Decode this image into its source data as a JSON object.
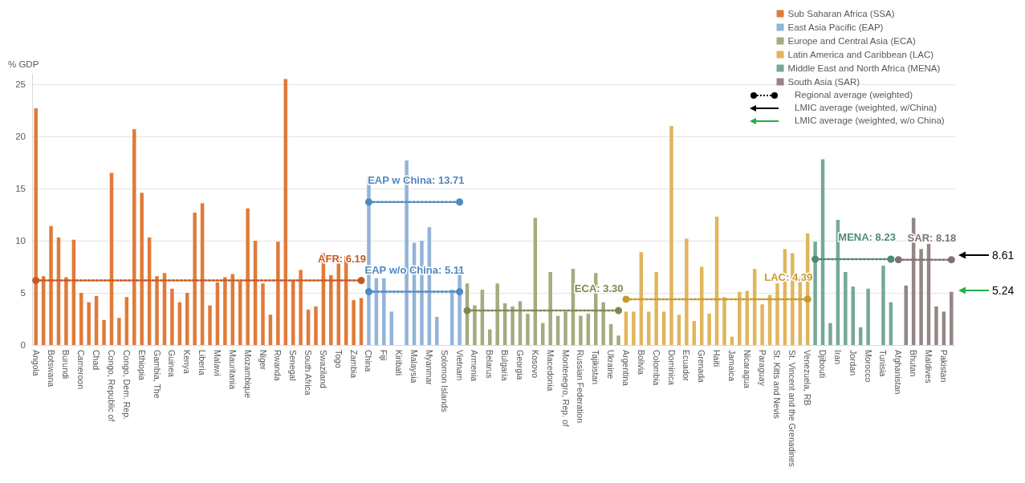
{
  "chart_data": {
    "type": "bar",
    "ylabel": "% GDP",
    "legend": "top right",
    "grid": "y",
    "marker": "circle",
    "line_style": "dotted",
    "ylim": [
      0,
      26
    ],
    "yticks": [
      0,
      5,
      10,
      15,
      20,
      25
    ],
    "categories": [
      "Angola",
      null,
      "Botswana",
      null,
      "Burundi",
      null,
      "Cameroon",
      null,
      "Chad",
      null,
      "Congo, Republic of",
      null,
      "Congo, Dem. Rep.",
      null,
      "Ethiopia",
      null,
      "Gambia, The",
      null,
      "Guinea",
      null,
      "Kenya",
      null,
      "Liberia",
      null,
      "Malawi",
      null,
      "Mauritania",
      null,
      "Mozambique",
      null,
      "Niger",
      null,
      "Rwanda",
      null,
      "Senegal",
      null,
      "South Africa",
      null,
      "Swaziland",
      null,
      "Togo",
      null,
      "Zambia",
      null,
      "China",
      null,
      "Fiji",
      null,
      "Kiribati",
      null,
      "Malaysia",
      null,
      "Myanmar",
      null,
      "Solomon Islands",
      null,
      "Vietnam",
      null,
      "Armenia",
      null,
      "Belarus",
      null,
      "Bulgaria",
      null,
      "Georgia",
      null,
      "Kosovo",
      null,
      "Macedonia",
      null,
      "Montenegro, Rep. of",
      null,
      "Russian Federation",
      null,
      "Tajikistan",
      null,
      "Ukraine",
      null,
      "Argentina",
      null,
      "Bolivia",
      null,
      "Colombia",
      null,
      "Dominica",
      null,
      "Ecuador",
      null,
      "Grenada",
      null,
      "Haiti",
      null,
      "Jamaica",
      null,
      "Nicaragua",
      null,
      "Paraguay",
      null,
      "St. Kitts and Nevis",
      null,
      "St. Vincent and the Grenadines",
      null,
      "Venezuela, RB",
      null,
      "Djibouti",
      null,
      "Iran",
      null,
      "Jordan",
      null,
      "Morocco",
      null,
      "Tunisia",
      null,
      "Afghanistan",
      null,
      "Bhutan",
      null,
      "Maldives",
      null,
      "Pakistan",
      null
    ],
    "series": [
      {
        "name": "Sub Saharan Africa (SSA)",
        "color": "#e07b39",
        "values": [
          22.7,
          6.6,
          11.4,
          10.3,
          6.5,
          10.1,
          5.0,
          4.1,
          4.7,
          2.4,
          16.5,
          2.6,
          4.6,
          20.7,
          14.6,
          10.3,
          6.6,
          6.9,
          5.4,
          4.1,
          5.0,
          12.7,
          13.6,
          3.8,
          6.0,
          6.5,
          6.8,
          6.1,
          13.1,
          10.0,
          5.9,
          2.9,
          9.9,
          25.5,
          6.2,
          7.2,
          3.4,
          3.7,
          8.8,
          6.7,
          8.6,
          8.5,
          4.3,
          4.5,
          null,
          null,
          null,
          null,
          null,
          null,
          null,
          null,
          null,
          null,
          null,
          null,
          null,
          null,
          null,
          null,
          null,
          null,
          null,
          null,
          null,
          null,
          null,
          null,
          null,
          null,
          null,
          null,
          null,
          null,
          null,
          null,
          null,
          null,
          null,
          null,
          null,
          null,
          null,
          null,
          null,
          null,
          null,
          null,
          null,
          null,
          null,
          null,
          null,
          null,
          null,
          null,
          null,
          null,
          null,
          null,
          null,
          null,
          null,
          null,
          null,
          null,
          null,
          null,
          null,
          null,
          null,
          null,
          null,
          null,
          null,
          null,
          null,
          null,
          null,
          null,
          null,
          null
        ]
      },
      {
        "name": "East Asia Pacific (EAP)",
        "color": "#92b4d8",
        "values": [
          null,
          null,
          null,
          null,
          null,
          null,
          null,
          null,
          null,
          null,
          null,
          null,
          null,
          null,
          null,
          null,
          null,
          null,
          null,
          null,
          null,
          null,
          null,
          null,
          null,
          null,
          null,
          null,
          null,
          null,
          null,
          null,
          null,
          null,
          null,
          null,
          null,
          null,
          null,
          null,
          null,
          null,
          null,
          null,
          16.1,
          6.4,
          6.4,
          3.2,
          null,
          17.7,
          9.8,
          10.0,
          11.3,
          2.7,
          null,
          5.3,
          7.5,
          null,
          null,
          null,
          null,
          null,
          null,
          null,
          null,
          null,
          null,
          null,
          null,
          null,
          null,
          null,
          null,
          null,
          null,
          null,
          null,
          null,
          null,
          null,
          null,
          null,
          null,
          null,
          null,
          null,
          null,
          null,
          null,
          null,
          null,
          null,
          null,
          null,
          null,
          null,
          null,
          null,
          null,
          null,
          null,
          null,
          null,
          null,
          null,
          null,
          null,
          null,
          null,
          null,
          null,
          null,
          null,
          null,
          null,
          null,
          null,
          null,
          null,
          null,
          null,
          null
        ]
      },
      {
        "name": "Europe and Central Asia (ECA)",
        "color": "#a5ab7e",
        "values": [
          null,
          null,
          null,
          null,
          null,
          null,
          null,
          null,
          null,
          null,
          null,
          null,
          null,
          null,
          null,
          null,
          null,
          null,
          null,
          null,
          null,
          null,
          null,
          null,
          null,
          null,
          null,
          null,
          null,
          null,
          null,
          null,
          null,
          null,
          null,
          null,
          null,
          null,
          null,
          null,
          null,
          null,
          null,
          null,
          null,
          null,
          null,
          null,
          null,
          null,
          null,
          null,
          null,
          null,
          null,
          null,
          null,
          5.9,
          3.8,
          5.3,
          1.5,
          5.9,
          4.0,
          3.7,
          4.2,
          3.0,
          12.2,
          2.1,
          7.0,
          2.8,
          3.2,
          7.3,
          2.8,
          3.0,
          6.9,
          4.1,
          2.0,
          0.9,
          null,
          null,
          null,
          null,
          null,
          null,
          null,
          null,
          null,
          null,
          null,
          null,
          null,
          null,
          null,
          null,
          null,
          null,
          null,
          null,
          null,
          null,
          null,
          null,
          null,
          null,
          null,
          null,
          null,
          null,
          null,
          null,
          null,
          null,
          null,
          null,
          null,
          null,
          null,
          null,
          null,
          null,
          null,
          null
        ]
      },
      {
        "name": "Latin America and Caribbean (LAC)",
        "color": "#e1b55c",
        "values": [
          null,
          null,
          null,
          null,
          null,
          null,
          null,
          null,
          null,
          null,
          null,
          null,
          null,
          null,
          null,
          null,
          null,
          null,
          null,
          null,
          null,
          null,
          null,
          null,
          null,
          null,
          null,
          null,
          null,
          null,
          null,
          null,
          null,
          null,
          null,
          null,
          null,
          null,
          null,
          null,
          null,
          null,
          null,
          null,
          null,
          null,
          null,
          null,
          null,
          null,
          null,
          null,
          null,
          null,
          null,
          null,
          null,
          null,
          null,
          null,
          null,
          null,
          null,
          null,
          null,
          null,
          null,
          null,
          null,
          null,
          null,
          null,
          null,
          null,
          null,
          null,
          null,
          null,
          3.2,
          3.2,
          8.9,
          3.2,
          7.0,
          3.2,
          21.0,
          2.9,
          10.2,
          2.3,
          7.5,
          3.0,
          12.3,
          4.6,
          0.8,
          5.1,
          5.2,
          7.3,
          3.9,
          4.8,
          5.9,
          9.2,
          8.8,
          6.5,
          10.7,
          null,
          null,
          null,
          null,
          null,
          null,
          null,
          null,
          null,
          null,
          null,
          null,
          null,
          null,
          null,
          null,
          null,
          null,
          null
        ]
      },
      {
        "name": "Middle East and North Africa (MENA)",
        "color": "#76a898",
        "values": [
          null,
          null,
          null,
          null,
          null,
          null,
          null,
          null,
          null,
          null,
          null,
          null,
          null,
          null,
          null,
          null,
          null,
          null,
          null,
          null,
          null,
          null,
          null,
          null,
          null,
          null,
          null,
          null,
          null,
          null,
          null,
          null,
          null,
          null,
          null,
          null,
          null,
          null,
          null,
          null,
          null,
          null,
          null,
          null,
          null,
          null,
          null,
          null,
          null,
          null,
          null,
          null,
          null,
          null,
          null,
          null,
          null,
          null,
          null,
          null,
          null,
          null,
          null,
          null,
          null,
          null,
          null,
          null,
          null,
          null,
          null,
          null,
          null,
          null,
          null,
          null,
          null,
          null,
          null,
          null,
          null,
          null,
          null,
          null,
          null,
          null,
          null,
          null,
          null,
          null,
          null,
          null,
          null,
          null,
          null,
          null,
          null,
          null,
          null,
          null,
          null,
          null,
          null,
          9.9,
          17.8,
          2.1,
          12.0,
          7.0,
          5.6,
          1.7,
          5.4,
          null,
          7.6,
          4.1,
          null,
          null,
          null,
          null,
          null,
          null,
          null,
          null
        ]
      },
      {
        "name": "South Asia (SAR)",
        "color": "#958686",
        "values": [
          null,
          null,
          null,
          null,
          null,
          null,
          null,
          null,
          null,
          null,
          null,
          null,
          null,
          null,
          null,
          null,
          null,
          null,
          null,
          null,
          null,
          null,
          null,
          null,
          null,
          null,
          null,
          null,
          null,
          null,
          null,
          null,
          null,
          null,
          null,
          null,
          null,
          null,
          null,
          null,
          null,
          null,
          null,
          null,
          null,
          null,
          null,
          null,
          null,
          null,
          null,
          null,
          null,
          null,
          null,
          null,
          null,
          null,
          null,
          null,
          null,
          null,
          null,
          null,
          null,
          null,
          null,
          null,
          null,
          null,
          null,
          null,
          null,
          null,
          null,
          null,
          null,
          null,
          null,
          null,
          null,
          null,
          null,
          null,
          null,
          null,
          null,
          null,
          null,
          null,
          null,
          null,
          null,
          null,
          null,
          null,
          null,
          null,
          null,
          null,
          null,
          null,
          null,
          null,
          null,
          null,
          null,
          null,
          null,
          null,
          null,
          null,
          null,
          null,
          null,
          5.7,
          12.2,
          9.2,
          9.7,
          3.7,
          3.2,
          5.1
        ]
      },
      {
        "type": "line",
        "name": "AFR: 6.19",
        "color": "#c65a22",
        "values": [
          6.19,
          null,
          null,
          null,
          null,
          null,
          null,
          null,
          null,
          null,
          null,
          null,
          null,
          null,
          null,
          null,
          null,
          null,
          null,
          null,
          null,
          null,
          null,
          null,
          null,
          null,
          null,
          null,
          null,
          null,
          null,
          null,
          null,
          null,
          null,
          null,
          null,
          null,
          null,
          null,
          null,
          null,
          null,
          6.19,
          null,
          null,
          null,
          null,
          null,
          null,
          null,
          null,
          null,
          null,
          null,
          null,
          null,
          null,
          null,
          null,
          null,
          null,
          null,
          null,
          null,
          null,
          null,
          null,
          null,
          null,
          null,
          null,
          null,
          null,
          null,
          null,
          null,
          null,
          null,
          null,
          null,
          null,
          null,
          null,
          null,
          null,
          null,
          null,
          null,
          null,
          null,
          null,
          null,
          null,
          null,
          null,
          null,
          null,
          null,
          null,
          null,
          null,
          null,
          null,
          null,
          null,
          null,
          null,
          null,
          null,
          null,
          null,
          null,
          null,
          null,
          null,
          null,
          null,
          null,
          null,
          null,
          null
        ]
      },
      {
        "type": "line",
        "name": "EAP w China: 13.71",
        "color": "#4f88c2",
        "values": [
          null,
          null,
          null,
          null,
          null,
          null,
          null,
          null,
          null,
          null,
          null,
          null,
          null,
          null,
          null,
          null,
          null,
          null,
          null,
          null,
          null,
          null,
          null,
          null,
          null,
          null,
          null,
          null,
          null,
          null,
          null,
          null,
          null,
          null,
          null,
          null,
          null,
          null,
          null,
          null,
          null,
          null,
          null,
          null,
          13.71,
          null,
          null,
          null,
          null,
          null,
          null,
          null,
          null,
          null,
          null,
          null,
          13.71,
          null,
          null,
          null,
          null,
          null,
          null,
          null,
          null,
          null,
          null,
          null,
          null,
          null,
          null,
          null,
          null,
          null,
          null,
          null,
          null,
          null,
          null,
          null,
          null,
          null,
          null,
          null,
          null,
          null,
          null,
          null,
          null,
          null,
          null,
          null,
          null,
          null,
          null,
          null,
          null,
          null,
          null,
          null,
          null,
          null,
          null,
          null,
          null,
          null,
          null,
          null,
          null,
          null,
          null,
          null,
          null,
          null,
          null,
          null,
          null,
          null,
          null,
          null,
          null,
          null
        ]
      },
      {
        "type": "line",
        "name": "EAP w/o China: 5.11",
        "color": "#4f88c2",
        "values": [
          null,
          null,
          null,
          null,
          null,
          null,
          null,
          null,
          null,
          null,
          null,
          null,
          null,
          null,
          null,
          null,
          null,
          null,
          null,
          null,
          null,
          null,
          null,
          null,
          null,
          null,
          null,
          null,
          null,
          null,
          null,
          null,
          null,
          null,
          null,
          null,
          null,
          null,
          null,
          null,
          null,
          null,
          null,
          null,
          5.11,
          null,
          null,
          null,
          null,
          null,
          null,
          null,
          null,
          null,
          null,
          null,
          5.11,
          null,
          null,
          null,
          null,
          null,
          null,
          null,
          null,
          null,
          null,
          null,
          null,
          null,
          null,
          null,
          null,
          null,
          null,
          null,
          null,
          null,
          null,
          null,
          null,
          null,
          null,
          null,
          null,
          null,
          null,
          null,
          null,
          null,
          null,
          null,
          null,
          null,
          null,
          null,
          null,
          null,
          null,
          null,
          null,
          null,
          null,
          null,
          null,
          null,
          null,
          null,
          null,
          null,
          null,
          null,
          null,
          null,
          null,
          null,
          null,
          null,
          null,
          null,
          null,
          null
        ]
      },
      {
        "type": "line",
        "name": "ECA: 3.30",
        "color": "#7e8753",
        "values": [
          null,
          null,
          null,
          null,
          null,
          null,
          null,
          null,
          null,
          null,
          null,
          null,
          null,
          null,
          null,
          null,
          null,
          null,
          null,
          null,
          null,
          null,
          null,
          null,
          null,
          null,
          null,
          null,
          null,
          null,
          null,
          null,
          null,
          null,
          null,
          null,
          null,
          null,
          null,
          null,
          null,
          null,
          null,
          null,
          null,
          null,
          null,
          null,
          null,
          null,
          null,
          null,
          null,
          null,
          null,
          null,
          null,
          3.3,
          null,
          null,
          null,
          null,
          null,
          null,
          null,
          null,
          null,
          null,
          null,
          null,
          null,
          null,
          null,
          null,
          null,
          null,
          null,
          3.3,
          null,
          null,
          null,
          null,
          null,
          null,
          null,
          null,
          null,
          null,
          null,
          null,
          null,
          null,
          null,
          null,
          null,
          null,
          null,
          null,
          null,
          null,
          null,
          null,
          null,
          null,
          null,
          null,
          null,
          null,
          null,
          null,
          null,
          null,
          null,
          null,
          null,
          null,
          null,
          null,
          null,
          null,
          null,
          null
        ]
      },
      {
        "type": "line",
        "name": "LAC: 4.39",
        "color": "#c89b2e",
        "values": [
          null,
          null,
          null,
          null,
          null,
          null,
          null,
          null,
          null,
          null,
          null,
          null,
          null,
          null,
          null,
          null,
          null,
          null,
          null,
          null,
          null,
          null,
          null,
          null,
          null,
          null,
          null,
          null,
          null,
          null,
          null,
          null,
          null,
          null,
          null,
          null,
          null,
          null,
          null,
          null,
          null,
          null,
          null,
          null,
          null,
          null,
          null,
          null,
          null,
          null,
          null,
          null,
          null,
          null,
          null,
          null,
          null,
          null,
          null,
          null,
          null,
          null,
          null,
          null,
          null,
          null,
          null,
          null,
          null,
          null,
          null,
          null,
          null,
          null,
          null,
          null,
          null,
          null,
          4.39,
          null,
          null,
          null,
          null,
          null,
          null,
          null,
          null,
          null,
          null,
          null,
          null,
          null,
          null,
          null,
          null,
          null,
          null,
          null,
          null,
          null,
          null,
          null,
          4.39,
          null,
          null,
          null,
          null,
          null,
          null,
          null,
          null,
          null,
          null,
          null,
          null,
          null,
          null,
          null,
          null,
          null,
          null,
          null
        ]
      },
      {
        "type": "line",
        "name": "MENA: 8.23",
        "color": "#4f8a79",
        "values": [
          null,
          null,
          null,
          null,
          null,
          null,
          null,
          null,
          null,
          null,
          null,
          null,
          null,
          null,
          null,
          null,
          null,
          null,
          null,
          null,
          null,
          null,
          null,
          null,
          null,
          null,
          null,
          null,
          null,
          null,
          null,
          null,
          null,
          null,
          null,
          null,
          null,
          null,
          null,
          null,
          null,
          null,
          null,
          null,
          null,
          null,
          null,
          null,
          null,
          null,
          null,
          null,
          null,
          null,
          null,
          null,
          null,
          null,
          null,
          null,
          null,
          null,
          null,
          null,
          null,
          null,
          null,
          null,
          null,
          null,
          null,
          null,
          null,
          null,
          null,
          null,
          null,
          null,
          null,
          null,
          null,
          null,
          null,
          null,
          null,
          null,
          null,
          null,
          null,
          null,
          null,
          null,
          null,
          null,
          null,
          null,
          null,
          null,
          null,
          null,
          null,
          null,
          null,
          8.23,
          null,
          null,
          null,
          null,
          null,
          null,
          null,
          null,
          null,
          8.23,
          null,
          null,
          null,
          null,
          null,
          null,
          null,
          null
        ]
      },
      {
        "type": "line",
        "name": "SAR: 8.18",
        "color": "#7f7272",
        "values": [
          null,
          null,
          null,
          null,
          null,
          null,
          null,
          null,
          null,
          null,
          null,
          null,
          null,
          null,
          null,
          null,
          null,
          null,
          null,
          null,
          null,
          null,
          null,
          null,
          null,
          null,
          null,
          null,
          null,
          null,
          null,
          null,
          null,
          null,
          null,
          null,
          null,
          null,
          null,
          null,
          null,
          null,
          null,
          null,
          null,
          null,
          null,
          null,
          null,
          null,
          null,
          null,
          null,
          null,
          null,
          null,
          null,
          null,
          null,
          null,
          null,
          null,
          null,
          null,
          null,
          null,
          null,
          null,
          null,
          null,
          null,
          null,
          null,
          null,
          null,
          null,
          null,
          null,
          null,
          null,
          null,
          null,
          null,
          null,
          null,
          null,
          null,
          null,
          null,
          null,
          null,
          null,
          null,
          null,
          null,
          null,
          null,
          null,
          null,
          null,
          null,
          null,
          null,
          null,
          null,
          null,
          null,
          null,
          null,
          null,
          null,
          null,
          null,
          null,
          8.18,
          null,
          null,
          null,
          null,
          null,
          null,
          8.18
        ]
      }
    ],
    "ref_lines": [
      {
        "axis": "y",
        "value": 8.61,
        "label": "8.61",
        "color": "#000000"
      },
      {
        "axis": "y",
        "value": 5.24,
        "label": "5.24",
        "color": "#1faf4b"
      }
    ],
    "annotations": [
      "Regional average (weighted)",
      "LMIC average (weighted, w/China)",
      "LMIC average (weighted, w/o China)"
    ]
  }
}
